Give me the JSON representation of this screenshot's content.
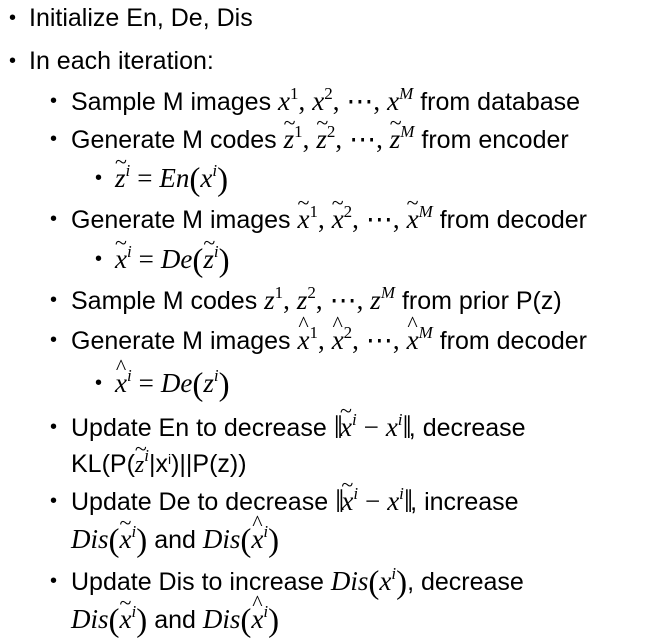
{
  "bullets": {
    "l1": "•",
    "l2": "•",
    "sub": "•",
    "subsub": "•"
  },
  "items": {
    "init": "Initialize En, De, Dis",
    "iter": "In each iteration:",
    "sample_images_pre": "Sample M images",
    "sample_images_post": "from database",
    "gen_codes_pre": "Generate M codes",
    "gen_codes_post": "from encoder",
    "gen_images_pre": "Generate M images",
    "gen_images_post": "from decoder",
    "sample_codes_pre": "Sample M codes",
    "sample_codes_post": "from prior P(z)",
    "gen_images2_pre": "Generate M images",
    "gen_images2_post": "from decoder",
    "update_en_pre": "Update En to decrease",
    "update_en_mid": ", decrease",
    "update_en_kl_a": "KL(P(",
    "update_en_kl_b": "|x",
    "update_en_kl_c": ")||P(z))",
    "update_de_pre": "Update De to decrease",
    "update_de_mid": ", increase",
    "and_1": "and",
    "update_dis_pre": "Update Dis to increase",
    "update_dis_mid": ", decrease",
    "and_2": "and"
  },
  "math": {
    "x": "x",
    "z": "z",
    "i": "i",
    "M": "M",
    "one": "1",
    "two": "2",
    "comma": ",",
    "dots": "⋯",
    "eq": "=",
    "minus": "−",
    "En": "En",
    "De": "De",
    "Dis": "Dis",
    "lp": "(",
    "rp": ")",
    "bars": "‖",
    "small_i": "i"
  }
}
